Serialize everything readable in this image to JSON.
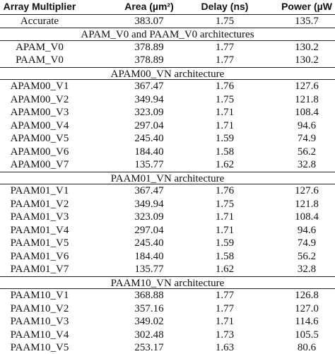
{
  "table": {
    "columns": [
      "Array Multiplier",
      "Area (µm²)",
      "Delay (ns)",
      "Power (µW"
    ],
    "rows": [
      {
        "cells": [
          "Accurate",
          "383.07",
          "1.75",
          "135.7"
        ]
      },
      {
        "section": "APAM_V0 and PAAM_V0 architectures"
      },
      {
        "cells": [
          "APAM_V0",
          "378.89",
          "1.77",
          "130.2"
        ]
      },
      {
        "cells": [
          "PAAM_V0",
          "378.89",
          "1.77",
          "130.2"
        ]
      },
      {
        "section": "APAM00_VN architecture"
      },
      {
        "cells": [
          "APAM00_V1",
          "367.47",
          "1.76",
          "127.6"
        ]
      },
      {
        "cells": [
          "APAM00_V2",
          "349.94",
          "1.75",
          "121.8"
        ]
      },
      {
        "cells": [
          "APAM00_V3",
          "323.09",
          "1.71",
          "108.4"
        ]
      },
      {
        "cells": [
          "APAM00_V4",
          "297.04",
          "1.71",
          "94.6"
        ]
      },
      {
        "cells": [
          "APAM00_V5",
          "245.40",
          "1.59",
          "74.9"
        ]
      },
      {
        "cells": [
          "APAM00_V6",
          "184.40",
          "1.58",
          "56.2"
        ]
      },
      {
        "cells": [
          "APAM00_V7",
          "135.77",
          "1.62",
          "32.8"
        ]
      },
      {
        "section": "PAAM01_VN architecture"
      },
      {
        "cells": [
          "PAAM01_V1",
          "367.47",
          "1.76",
          "127.6"
        ]
      },
      {
        "cells": [
          "PAAM01_V2",
          "349.94",
          "1.75",
          "121.8"
        ]
      },
      {
        "cells": [
          "PAAM01_V3",
          "323.09",
          "1.71",
          "108.4"
        ]
      },
      {
        "cells": [
          "PAAM01_V4",
          "297.04",
          "1.71",
          "94.6"
        ]
      },
      {
        "cells": [
          "PAAM01_V5",
          "245.40",
          "1.59",
          "74.9"
        ]
      },
      {
        "cells": [
          "PAAM01_V6",
          "184.40",
          "1.58",
          "56.2"
        ]
      },
      {
        "cells": [
          "PAAM01_V7",
          "135.77",
          "1.62",
          "32.8"
        ]
      },
      {
        "section": "PAAM10_VN architecture"
      },
      {
        "cells": [
          "PAAM10_V1",
          "368.88",
          "1.77",
          "126.8"
        ]
      },
      {
        "cells": [
          "PAAM10_V2",
          "357.16",
          "1.77",
          "127.0"
        ]
      },
      {
        "cells": [
          "PAAM10_V3",
          "349.02",
          "1.71",
          "114.6"
        ]
      },
      {
        "cells": [
          "PAAM10_V4",
          "302.48",
          "1.73",
          "105.5"
        ]
      },
      {
        "cells": [
          "PAAM10_V5",
          "253.17",
          "1.63",
          "80.6"
        ]
      }
    ]
  }
}
